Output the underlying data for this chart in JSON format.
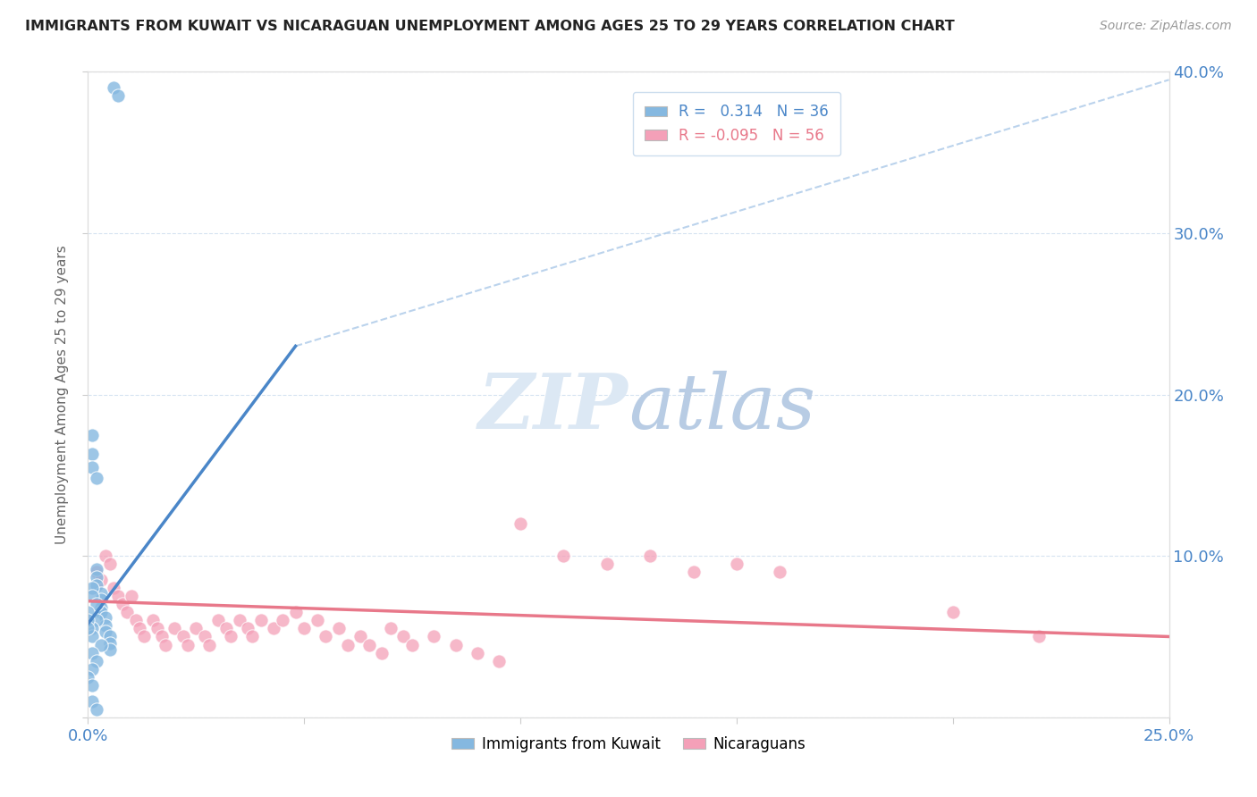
{
  "title": "IMMIGRANTS FROM KUWAIT VS NICARAGUAN UNEMPLOYMENT AMONG AGES 25 TO 29 YEARS CORRELATION CHART",
  "source": "Source: ZipAtlas.com",
  "ylabel": "Unemployment Among Ages 25 to 29 years",
  "xlim": [
    0.0,
    0.25
  ],
  "ylim": [
    0.0,
    0.4
  ],
  "xticks": [
    0.0,
    0.05,
    0.1,
    0.15,
    0.2,
    0.25
  ],
  "yticks": [
    0.0,
    0.1,
    0.2,
    0.3,
    0.4
  ],
  "xtick_labels": [
    "0.0%",
    "",
    "",
    "",
    "",
    "25.0%"
  ],
  "ytick_right_labels": [
    "",
    "10.0%",
    "20.0%",
    "30.0%",
    "40.0%"
  ],
  "legend1_label": "R =   0.314   N = 36",
  "legend2_label": "R = -0.095   N = 56",
  "blue_color": "#85b8e0",
  "pink_color": "#f4a0b8",
  "blue_line_color": "#4a86c8",
  "pink_line_color": "#e8788a",
  "blue_scatter_x": [
    0.006,
    0.007,
    0.001,
    0.001,
    0.001,
    0.002,
    0.002,
    0.002,
    0.002,
    0.003,
    0.003,
    0.003,
    0.003,
    0.004,
    0.004,
    0.004,
    0.005,
    0.005,
    0.005,
    0.001,
    0.001,
    0.002,
    0.002,
    0.001,
    0.001,
    0.0,
    0.0,
    0.0,
    0.003,
    0.001,
    0.002,
    0.001,
    0.0,
    0.001,
    0.001,
    0.002
  ],
  "blue_scatter_y": [
    0.39,
    0.385,
    0.175,
    0.163,
    0.155,
    0.148,
    0.092,
    0.087,
    0.082,
    0.077,
    0.073,
    0.068,
    0.065,
    0.062,
    0.057,
    0.053,
    0.05,
    0.046,
    0.042,
    0.08,
    0.075,
    0.07,
    0.06,
    0.055,
    0.05,
    0.065,
    0.06,
    0.055,
    0.045,
    0.04,
    0.035,
    0.03,
    0.025,
    0.02,
    0.01,
    0.005
  ],
  "pink_scatter_x": [
    0.002,
    0.003,
    0.004,
    0.005,
    0.006,
    0.007,
    0.008,
    0.009,
    0.01,
    0.011,
    0.012,
    0.013,
    0.015,
    0.016,
    0.017,
    0.018,
    0.02,
    0.022,
    0.023,
    0.025,
    0.027,
    0.028,
    0.03,
    0.032,
    0.033,
    0.035,
    0.037,
    0.038,
    0.04,
    0.043,
    0.045,
    0.048,
    0.05,
    0.053,
    0.055,
    0.058,
    0.06,
    0.063,
    0.065,
    0.068,
    0.07,
    0.073,
    0.075,
    0.08,
    0.085,
    0.09,
    0.095,
    0.1,
    0.11,
    0.12,
    0.13,
    0.14,
    0.15,
    0.16,
    0.2,
    0.22
  ],
  "pink_scatter_y": [
    0.09,
    0.085,
    0.1,
    0.095,
    0.08,
    0.075,
    0.07,
    0.065,
    0.075,
    0.06,
    0.055,
    0.05,
    0.06,
    0.055,
    0.05,
    0.045,
    0.055,
    0.05,
    0.045,
    0.055,
    0.05,
    0.045,
    0.06,
    0.055,
    0.05,
    0.06,
    0.055,
    0.05,
    0.06,
    0.055,
    0.06,
    0.065,
    0.055,
    0.06,
    0.05,
    0.055,
    0.045,
    0.05,
    0.045,
    0.04,
    0.055,
    0.05,
    0.045,
    0.05,
    0.045,
    0.04,
    0.035,
    0.12,
    0.1,
    0.095,
    0.1,
    0.09,
    0.095,
    0.09,
    0.065,
    0.05
  ],
  "blue_solid_line_x": [
    0.0,
    0.048
  ],
  "blue_solid_line_y": [
    0.058,
    0.23
  ],
  "blue_dashed_line_x": [
    0.048,
    0.25
  ],
  "blue_dashed_line_y": [
    0.23,
    0.395
  ],
  "pink_line_x": [
    0.0,
    0.25
  ],
  "pink_line_y": [
    0.072,
    0.05
  ]
}
